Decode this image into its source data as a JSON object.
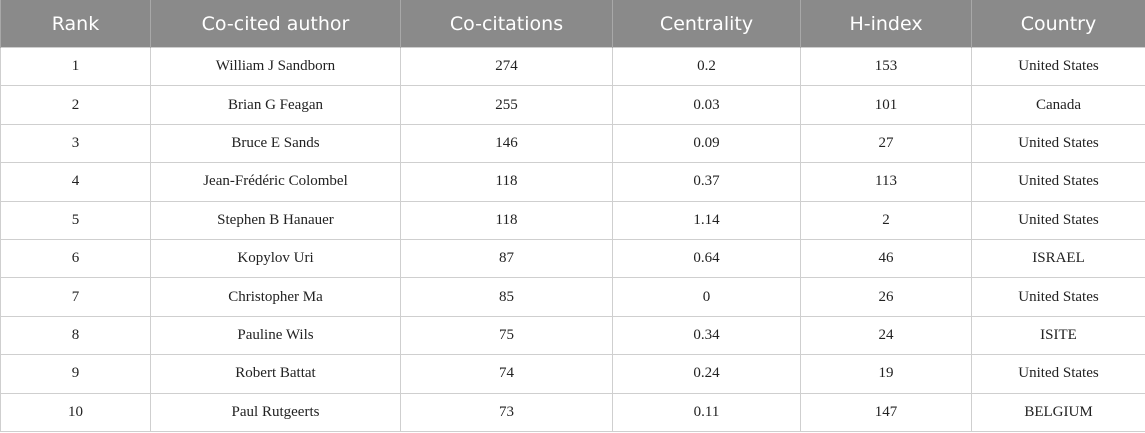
{
  "table": {
    "header": [
      "Rank",
      "Co-cited author",
      "Co-citations",
      "Centrality",
      "H-index",
      "Country"
    ],
    "rows": [
      [
        "1",
        "William J Sandborn",
        "274",
        "0.2",
        "153",
        "United States"
      ],
      [
        "2",
        "Brian G Feagan",
        "255",
        "0.03",
        "101",
        "Canada"
      ],
      [
        "3",
        "Bruce E Sands",
        "146",
        "0.09",
        "27",
        "United States"
      ],
      [
        "4",
        "Jean-Frédéric Colombel",
        "118",
        "0.37",
        "113",
        "United States"
      ],
      [
        "5",
        "Stephen B Hanauer",
        "118",
        "1.14",
        "2",
        "United States"
      ],
      [
        "6",
        "Kopylov Uri",
        "87",
        "0.64",
        "46",
        "ISRAEL"
      ],
      [
        "7",
        "Christopher Ma",
        "85",
        "0",
        "26",
        "United States"
      ],
      [
        "8",
        "Pauline Wils",
        "75",
        "0.34",
        "24",
        "ISITE"
      ],
      [
        "9",
        "Robert Battat",
        "74",
        "0.24",
        "19",
        "United States"
      ],
      [
        "10",
        "Paul Rutgeerts",
        "73",
        "0.11",
        "147",
        "BELGIUM"
      ]
    ]
  }
}
